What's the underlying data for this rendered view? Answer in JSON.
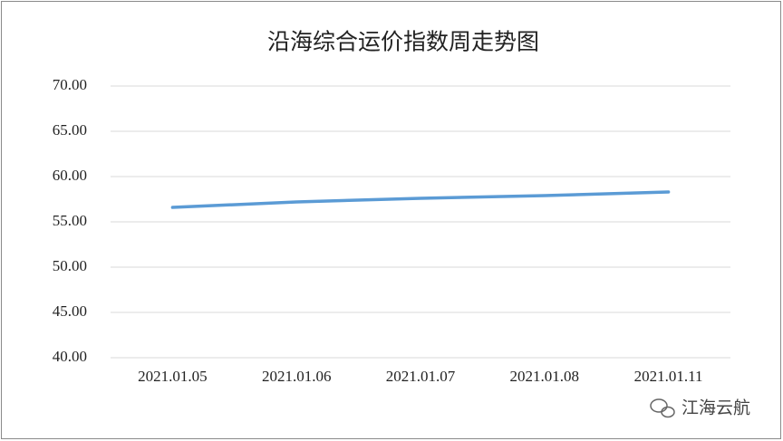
{
  "chart_data": {
    "type": "line",
    "title": "沿海综合运价指数周走势图",
    "categories": [
      "2021.01.05",
      "2021.01.06",
      "2021.01.07",
      "2021.01.08",
      "2021.01.11"
    ],
    "series": [
      {
        "name": "沿海综合运价指数",
        "color": "#5b9bd5",
        "values": [
          56.6,
          57.2,
          57.6,
          57.9,
          58.3
        ]
      }
    ],
    "ylim": [
      40,
      70
    ],
    "yticks": [
      {
        "value": 40,
        "label": "40.00"
      },
      {
        "value": 45,
        "label": "45.00"
      },
      {
        "value": 50,
        "label": "50.00"
      },
      {
        "value": 55,
        "label": "55.00"
      },
      {
        "value": 60,
        "label": "60.00"
      },
      {
        "value": 65,
        "label": "65.00"
      },
      {
        "value": 70,
        "label": "70.00"
      }
    ],
    "grid": true,
    "legend": false,
    "watermark": "江海云航"
  }
}
